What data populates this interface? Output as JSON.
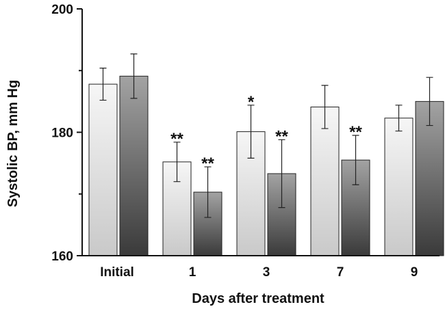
{
  "chart_data": {
    "type": "bar",
    "xlabel": "Days after treatment",
    "ylabel": "Systolic BP, mm Hg",
    "ylim": [
      160,
      200
    ],
    "yticks": [
      160,
      180,
      200
    ],
    "yminor": [
      170,
      190
    ],
    "categories": [
      "Initial",
      "1",
      "3",
      "7",
      "9"
    ],
    "series": [
      {
        "color": "light-gradient",
        "values": [
          187.8,
          175.2,
          180.1,
          184.1,
          182.3
        ],
        "errors": [
          2.6,
          3.2,
          4.3,
          3.5,
          2.1
        ],
        "significance": [
          "",
          "**",
          "*",
          "",
          ""
        ]
      },
      {
        "color": "dark-gradient",
        "values": [
          189.1,
          170.3,
          173.3,
          175.5,
          185.0
        ],
        "errors": [
          3.6,
          4.1,
          5.5,
          4.0,
          3.9
        ],
        "significance": [
          "",
          "**",
          "**",
          "**",
          ""
        ]
      }
    ]
  }
}
